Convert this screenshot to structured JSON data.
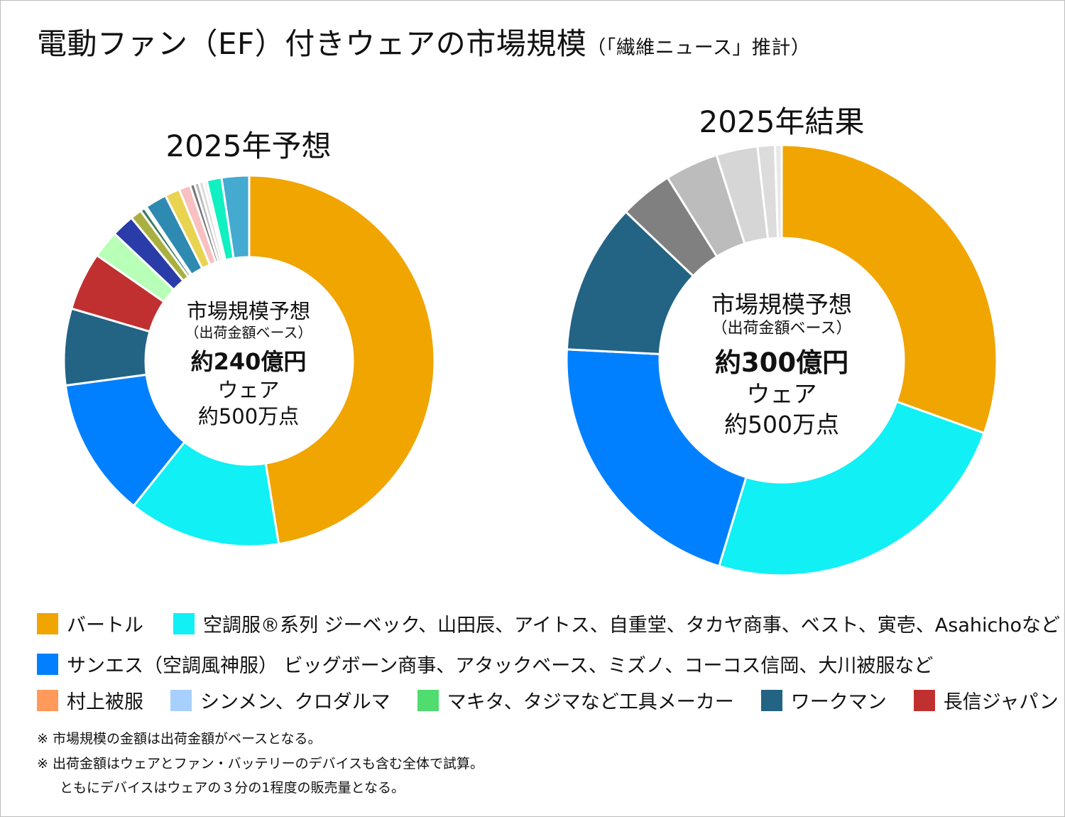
{
  "title": "電動ファン（EF）付きウェアの市場規模",
  "title_source": "（「繊維ニュース」推計）",
  "chart_data": [
    {
      "type": "pie",
      "donut": true,
      "title": "2025年予想",
      "center_label": {
        "line1": "市場規模予想",
        "line2": "（出荷金額ベース）",
        "line3": "約240億円",
        "line4": "ウェア",
        "line5": "約500万点"
      },
      "values": [
        47.6,
        13.3,
        12.2,
        6.7,
        5.1,
        2.4,
        2.0,
        1.0,
        0.4,
        0.2,
        1.9,
        1.3,
        1.0,
        0.4,
        0.4,
        0.4,
        0.3,
        1.3,
        2.4
      ],
      "colors": [
        "#f0a500",
        "#10f0f5",
        "#0080ff",
        "#236384",
        "#c03030",
        "#b8ffb8",
        "#2a3ca8",
        "#aab040",
        "#3a7a60",
        "#c0e8e8",
        "#2e8ab0",
        "#e8d450",
        "#f8c0c0",
        "#777777",
        "#bbbbbb",
        "#dddddd",
        "#eeeeee",
        "#10f0c0",
        "#44aad0"
      ],
      "start": "top",
      "direction": "clockwise"
    },
    {
      "type": "pie",
      "donut": true,
      "title": "2025年結果",
      "center_label": {
        "line1": "市場規模予想",
        "line2": "（出荷金額ベース）",
        "line3": "約300億円",
        "line4": "ウェア",
        "line5": "約500万点"
      },
      "values": [
        30.5,
        24.2,
        21.1,
        11.3,
        4.0,
        4.0,
        3.1,
        1.3,
        0.5
      ],
      "colors": [
        "#f0a500",
        "#10f0f5",
        "#0080ff",
        "#236384",
        "#808080",
        "#bcbcbc",
        "#d6d6d6",
        "#dcdcdc",
        "#e8e8e8"
      ],
      "start": "top",
      "direction": "clockwise"
    }
  ],
  "legend": [
    [
      {
        "label": "バートル",
        "color": "#f0a500"
      },
      {
        "label": "空調服®系列 ジーベック、山田辰、アイトス、自重堂、タカヤ商事、ベスト、寅壱、Asahichoなど",
        "color": "#10f0f5"
      }
    ],
    [
      {
        "label": "サンエス（空調風神服） ビッグボーン商事、アタックベース、ミズノ、コーコス信岡、大川被服など",
        "color": "#0080ff"
      }
    ],
    [
      {
        "label": "村上被服",
        "color": "#ff9a5a"
      },
      {
        "label": "シンメン、クロダルマ",
        "color": "#a8d0ff"
      },
      {
        "label": "マキタ、タジマなど工具メーカー",
        "color": "#50dc6e"
      },
      {
        "label": "ワークマン",
        "color": "#236384"
      },
      {
        "label": "長信ジャパン",
        "color": "#c03030"
      }
    ]
  ],
  "notes": [
    "※ 市場規模の金額は出荷金額がベースとなる。",
    "※ 出荷金額はウェアとファン・バッテリーのデバイスも含む全体で試算。",
    "ともにデバイスはウェアの３分の1程度の販売量となる。"
  ]
}
